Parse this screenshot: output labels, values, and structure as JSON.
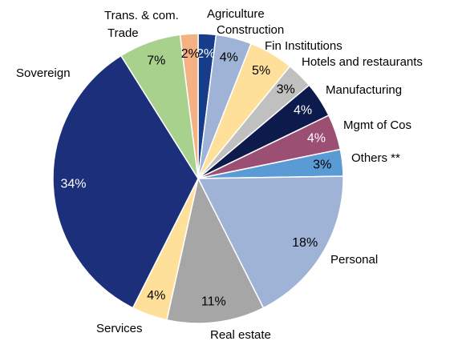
{
  "chart_data": {
    "type": "pie",
    "categories": [
      "Agriculture",
      "Construction",
      "Fin Institutions",
      "Hotels and restaurants",
      "Manufacturing",
      "Mgmt of Cos",
      "Others **",
      "Personal",
      "Real estate",
      "Services",
      "Sovereign",
      "Trade",
      "Trans. & com."
    ],
    "values": [
      2,
      4,
      5,
      3,
      4,
      4,
      3,
      18,
      11,
      4,
      34,
      7,
      2
    ],
    "value_labels": [
      "2%",
      "4%",
      "5%",
      "3%",
      "4%",
      "4%",
      "3%",
      "18%",
      "11%",
      "4%",
      "34%",
      "7%",
      "2%"
    ],
    "colors": [
      "#173c8a",
      "#9fb3d6",
      "#ffe09a",
      "#c0c0c0",
      "#0d1a4c",
      "#9b4f72",
      "#5b9bd5",
      "#9fb3d6",
      "#a6a6a6",
      "#ffe09a",
      "#1b2f7a",
      "#a9d18e",
      "#f4b183"
    ]
  }
}
